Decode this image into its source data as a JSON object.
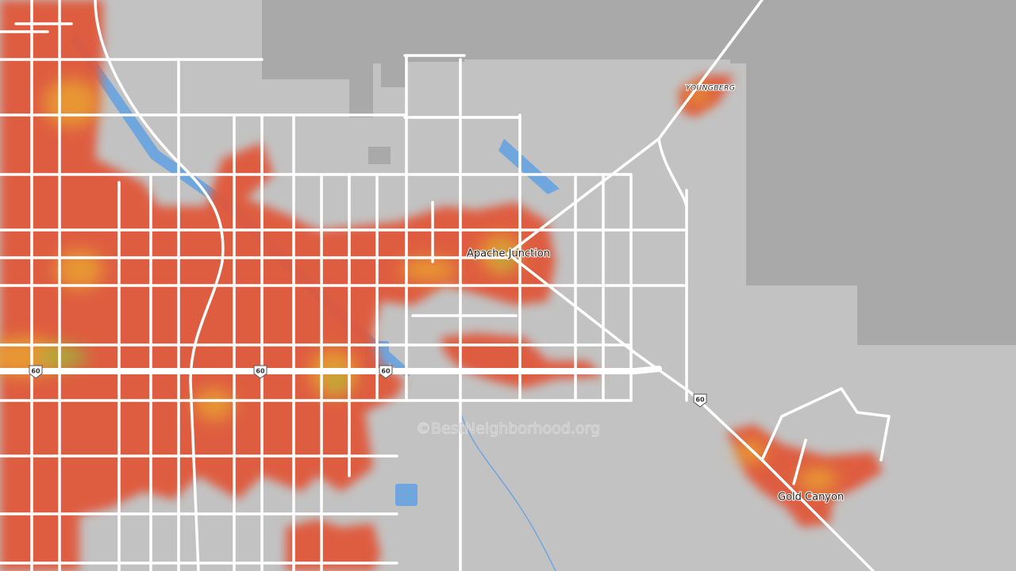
{
  "places": [
    {
      "name": "Apache Junction"
    },
    {
      "name": "YOUNGBERG"
    },
    {
      "name": "Gold Canyon"
    }
  ],
  "highway_shields": [
    "60",
    "60",
    "60",
    "60"
  ],
  "watermark": "©BestNeighborhood.org"
}
